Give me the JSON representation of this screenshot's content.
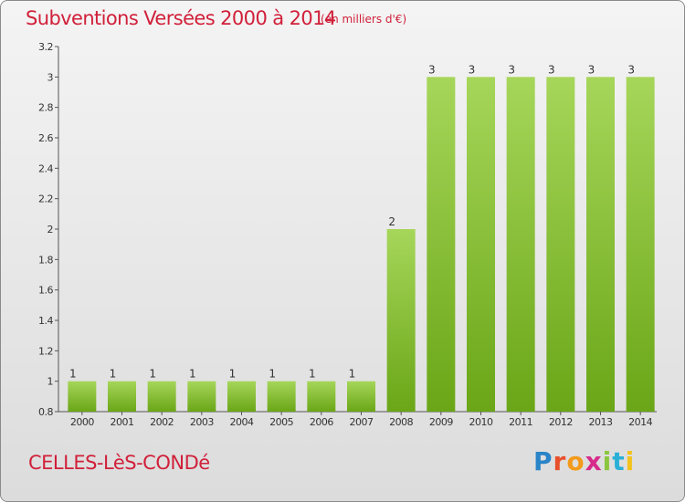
{
  "title": "Subventions Versées 2000 à 2014",
  "unit_note": "(en milliers d'€)",
  "town": "CELLES-LèS-CONDé",
  "logo": {
    "letters": [
      "P",
      "r",
      "o",
      "x",
      "i",
      "t",
      "i"
    ],
    "colors": [
      "#2a84c8",
      "#e8502c",
      "#f39a1c",
      "#d62b8a",
      "#8cc63e",
      "#2ab0d6",
      "#f3c21c"
    ]
  },
  "colors": {
    "bar_light": "#a6d65a",
    "bar_dark": "#6aa617",
    "text": "#333333",
    "accent": "#d1203a"
  },
  "chart_data": {
    "type": "bar",
    "categories": [
      "2000",
      "2001",
      "2002",
      "2003",
      "2004",
      "2005",
      "2006",
      "2007",
      "2008",
      "2009",
      "2010",
      "2011",
      "2012",
      "2013",
      "2014"
    ],
    "values": [
      1,
      1,
      1,
      1,
      1,
      1,
      1,
      1,
      2,
      3,
      3,
      3,
      3,
      3,
      3
    ],
    "labels": [
      "1",
      "1",
      "1",
      "1",
      "1",
      "1",
      "1",
      "1",
      "2",
      "3",
      "3",
      "3",
      "3",
      "3",
      "3"
    ],
    "ylim": [
      0.8,
      3.2
    ],
    "yticks": [
      0.8,
      1,
      1.2,
      1.4,
      1.6,
      1.8,
      2,
      2.2,
      2.4,
      2.6,
      2.8,
      3,
      3.2
    ],
    "ytick_labels": [
      "0.8",
      "1",
      "1.2",
      "1.4",
      "1.6",
      "1.8",
      "2",
      "2.2",
      "2.4",
      "2.6",
      "2.8",
      "3",
      "3.2"
    ],
    "grid": false,
    "title": "Subventions Versées 2000 à 2014",
    "xlabel": "",
    "ylabel": ""
  }
}
